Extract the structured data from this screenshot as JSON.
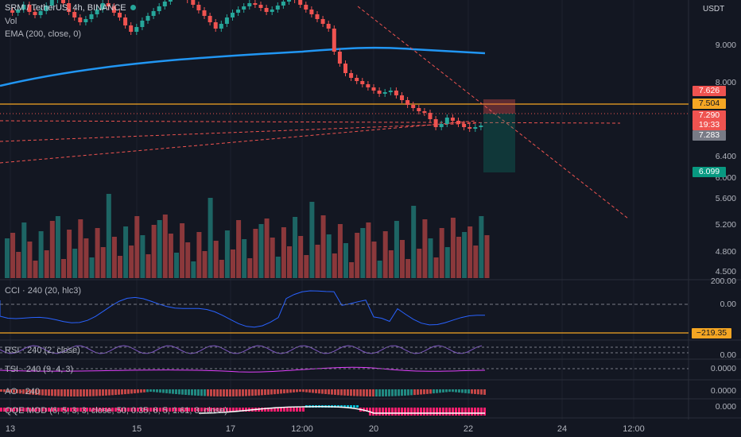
{
  "header": {
    "symbol_line": "SRM / TetherUS, 4h, BINANCE",
    "vol_label": "Vol",
    "ema_label": "EMA (200, close, 0)",
    "currency": "USDT"
  },
  "price_axis": {
    "ticks": [
      "9.000",
      "8.000",
      "6.400",
      "6.000",
      "5.600",
      "5.200",
      "4.800",
      "4.500"
    ],
    "tags": {
      "high": "7.626",
      "hline": "7.504",
      "last": "7.290",
      "countdown": "19:33",
      "low": "7.283",
      "target": "6.099"
    }
  },
  "indicators": {
    "cci": {
      "label": "CCI · 240 (20, hlc3)",
      "tick_top": "200.00",
      "tick_mid": "0.00",
      "level_tag": "−219.35"
    },
    "rsi": {
      "label": "RSI · 240 (2, close)",
      "tick": "0.00"
    },
    "tsi": {
      "label": "TSI · 240 (9, 4, 3)",
      "tick": "0.0000"
    },
    "ao": {
      "label": "AO · 240",
      "tick": "0.0000"
    },
    "qqe": {
      "label": "QQE MOD (6, 5, 3, 3, close, 50, 0.35, 6, 5, 1.61, 3, close)",
      "tick": "0.000"
    }
  },
  "time_axis": {
    "labels": [
      "13",
      "15",
      "17",
      "12:00",
      "20",
      "22",
      "24",
      "12:00"
    ]
  },
  "colors": {
    "up": "#26a69a",
    "down": "#ef5350",
    "ema": "#2196f3",
    "hline": "#f5a623",
    "background": "#131722"
  },
  "chart_data": {
    "type": "candlestick",
    "y_range": [
      4.5,
      10.0
    ],
    "ema200_level": [
      8.2,
      8.9
    ],
    "horizontal_level": 7.504,
    "short_position": {
      "entry": 7.504,
      "stop": 7.626,
      "target": 6.099
    }
  }
}
